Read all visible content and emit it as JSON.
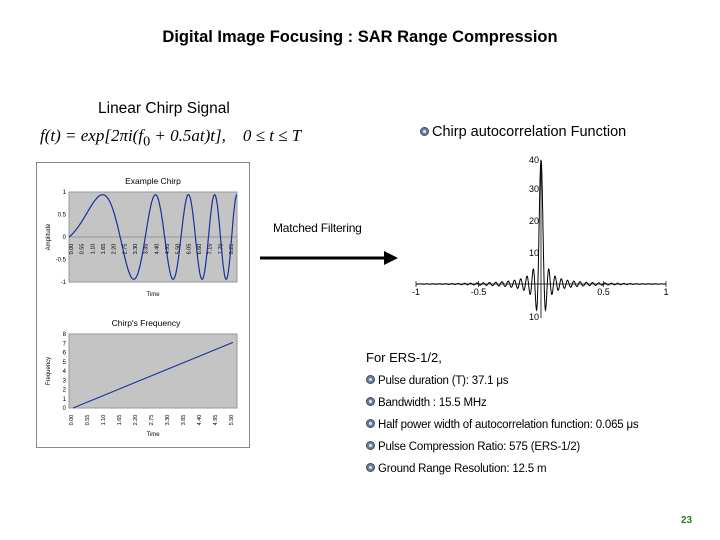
{
  "slide": {
    "title": "Digital Image Focusing : SAR Range Compression",
    "subtitle": "Linear Chirp Signal",
    "formula": {
      "lhs": "f(t) = exp[2πi(f",
      "sub0": "0",
      "mid": " + 0.5at)t],",
      "cond": "0 ≤ t ≤ T"
    },
    "autocorr_label": "Chirp autocorrelation Function",
    "matched_label": "Matched Filtering",
    "ers_heading": "For ERS-1/2,",
    "bullets": [
      "Pulse duration (T): 37.1 μs",
      "Bandwidth : 15.5 MHz",
      "Half power width of autocorrelation function: 0.065 μs",
      "Pulse Compression Ratio: 575 (ERS-1/2)",
      "Ground Range Resolution: 12.5 m"
    ],
    "page_number": "23"
  },
  "chart_data": [
    {
      "type": "line",
      "title": "Example Chirp",
      "xlabel": "Time",
      "ylabel": "Amplitude",
      "y_ticks": [
        "1",
        "0.5",
        "0",
        "-0.5",
        "-1"
      ],
      "x_ticks": [
        "0.00",
        "0.55",
        "1.10",
        "1.65",
        "2.20",
        "2.75",
        "3.30",
        "3.85",
        "4.40",
        "4.95",
        "5.50",
        "6.05",
        "6.60",
        "7.15",
        "7.70",
        "8.25"
      ]
    },
    {
      "type": "line",
      "title": "Chirp's Frequency",
      "xlabel": "Time",
      "ylabel": "Frequency",
      "y_ticks": [
        "8",
        "7",
        "6",
        "5",
        "4",
        "3",
        "2",
        "1",
        "0"
      ],
      "x_ticks": [
        "0.00",
        "0.55",
        "1.10",
        "1.65",
        "2.20",
        "2.75",
        "3.30",
        "3.85",
        "4.40",
        "4.95",
        "5.50"
      ],
      "x": [
        0,
        5.5
      ],
      "y": [
        0,
        7.1
      ]
    },
    {
      "type": "line",
      "title": "",
      "y_ticks": [
        "40",
        "30",
        "20",
        "10",
        "10"
      ],
      "x_ticks": [
        "-1",
        "-0.5",
        "0.5",
        "1"
      ]
    }
  ]
}
